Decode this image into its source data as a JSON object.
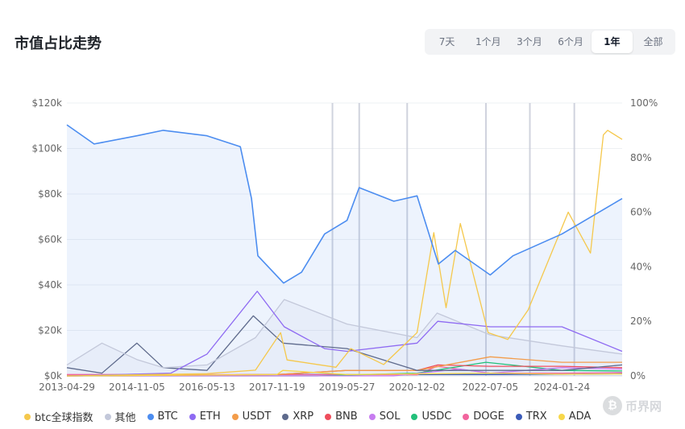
{
  "title": "市值占比走势",
  "range_buttons": [
    "7天",
    "1个月",
    "3个月",
    "6个月",
    "1年",
    "全部"
  ],
  "active_range": "1年",
  "watermark": "币界网",
  "chart_data": {
    "type": "line",
    "x_ticks": [
      "2013-04-29",
      "2014-11-05",
      "2016-05-13",
      "2017-11-19",
      "2019-05-27",
      "2020-12-02",
      "2022-07-05",
      "2024-01-24"
    ],
    "x_range": [
      "2013-04-29",
      "2025-05-15"
    ],
    "y_left": {
      "ticks": [
        "$0k",
        "$20k",
        "$40k",
        "$60k",
        "$80k",
        "$100k",
        "$120k"
      ],
      "range": [
        0,
        120000
      ]
    },
    "y_right": {
      "ticks": [
        "0%",
        "20%",
        "40%",
        "60%",
        "80%",
        "100%"
      ],
      "range": [
        0,
        100
      ]
    },
    "grid": true,
    "legend_position": "bottom",
    "vertical_markers": [
      "2019-02-01",
      "2019-09-01",
      "2020-09-15",
      "2022-06-01",
      "2023-05-15",
      "2024-05-01"
    ],
    "series": [
      {
        "name": "btc全球指数",
        "axis": "left",
        "color": "#f5c84c",
        "x": [
          "2013-04-29",
          "2016-05-13",
          "2017-06-01",
          "2017-12-17",
          "2018-02-06",
          "2019-03-01",
          "2019-06-26",
          "2020-03-13",
          "2020-12-02",
          "2021-04-14",
          "2021-07-20",
          "2021-11-10",
          "2022-06-18",
          "2022-11-21",
          "2023-05-01",
          "2024-03-14",
          "2024-09-06",
          "2024-12-17",
          "2025-01-20",
          "2025-05-15"
        ],
        "values": [
          0,
          1000,
          2500,
          19000,
          7000,
          3800,
          12000,
          5000,
          19000,
          63000,
          30000,
          67000,
          19000,
          16000,
          29000,
          72000,
          54000,
          106000,
          108000,
          104000
        ]
      },
      {
        "name": "其他",
        "axis": "right",
        "color": "#c3c8da",
        "x": [
          "2013-04-29",
          "2014-02-01",
          "2014-11-05",
          "2015-06-01",
          "2016-05-13",
          "2017-06-01",
          "2018-01-15",
          "2019-05-27",
          "2020-12-02",
          "2021-05-10",
          "2022-07-05",
          "2024-01-24",
          "2025-05-15"
        ],
        "values": [
          4,
          12,
          6,
          3,
          4,
          14,
          28,
          19,
          14,
          23,
          15,
          11,
          8
        ]
      },
      {
        "name": "BTC",
        "axis": "right",
        "color": "#4c8df0",
        "x": [
          "2013-04-29",
          "2013-12-01",
          "2014-11-05",
          "2015-06-01",
          "2016-05-13",
          "2017-02-01",
          "2017-05-01",
          "2017-06-20",
          "2018-01-10",
          "2018-06-01",
          "2018-12-01",
          "2019-05-27",
          "2019-09-01",
          "2020-06-01",
          "2020-12-02",
          "2021-05-20",
          "2021-10-01",
          "2022-07-05",
          "2023-01-01",
          "2024-01-24",
          "2025-05-15"
        ],
        "values": [
          92,
          85,
          88,
          90,
          88,
          84,
          65,
          44,
          34,
          38,
          52,
          57,
          69,
          64,
          66,
          41,
          46,
          37,
          44,
          52,
          65
        ]
      },
      {
        "name": "ETH",
        "axis": "right",
        "color": "#8e6af2",
        "x": [
          "2013-04-29",
          "2015-08-01",
          "2016-05-13",
          "2017-06-15",
          "2018-01-15",
          "2018-12-01",
          "2019-05-27",
          "2020-12-02",
          "2021-05-15",
          "2022-07-05",
          "2024-01-24",
          "2025-05-15"
        ],
        "values": [
          0,
          1,
          8,
          31,
          18,
          10,
          9,
          12,
          20,
          18,
          18,
          9
        ]
      },
      {
        "name": "USDT",
        "axis": "right",
        "color": "#f39c4a",
        "x": [
          "2013-04-29",
          "2017-11-19",
          "2019-05-27",
          "2020-12-02",
          "2022-07-05",
          "2024-01-24",
          "2025-05-15"
        ],
        "values": [
          0,
          0.5,
          2,
          2,
          7,
          5,
          5
        ]
      },
      {
        "name": "XRP",
        "axis": "right",
        "color": "#5e6a8c",
        "x": [
          "2013-04-29",
          "2014-02-01",
          "2014-11-05",
          "2015-06-01",
          "2016-05-13",
          "2017-05-15",
          "2018-01-04",
          "2019-05-27",
          "2020-12-02",
          "2022-07-05",
          "2024-01-24",
          "2025-05-15"
        ],
        "values": [
          3,
          1,
          12,
          3,
          2,
          22,
          12,
          10,
          2,
          2,
          2,
          4
        ]
      },
      {
        "name": "BNB",
        "axis": "right",
        "color": "#ef4d5c",
        "x": [
          "2013-04-29",
          "2017-11-19",
          "2019-05-27",
          "2020-12-02",
          "2021-05-15",
          "2022-07-05",
          "2024-01-24",
          "2025-05-15"
        ],
        "values": [
          0,
          0.5,
          2,
          2,
          4,
          3.5,
          3.5,
          3
        ]
      },
      {
        "name": "SOL",
        "axis": "right",
        "color": "#c77cf0",
        "x": [
          "2013-04-29",
          "2020-06-01",
          "2021-11-01",
          "2022-07-05",
          "2024-01-24",
          "2025-05-15"
        ],
        "values": [
          0,
          0,
          2.5,
          1,
          3,
          2.5
        ]
      },
      {
        "name": "USDC",
        "axis": "right",
        "color": "#22c07a",
        "x": [
          "2013-04-29",
          "2018-10-01",
          "2020-12-02",
          "2022-06-01",
          "2024-01-24",
          "2025-05-15"
        ],
        "values": [
          0,
          0,
          1,
          5,
          2,
          1.8
        ]
      },
      {
        "name": "DOGE",
        "axis": "right",
        "color": "#f2649d",
        "x": [
          "2013-04-29",
          "2020-12-02",
          "2021-05-08",
          "2022-07-05",
          "2024-01-24",
          "2025-05-15"
        ],
        "values": [
          0.5,
          0.4,
          3.5,
          1,
          1,
          1.2
        ]
      },
      {
        "name": "TRX",
        "axis": "right",
        "color": "#3b5bb8",
        "x": [
          "2013-04-29",
          "2017-11-19",
          "2019-05-27",
          "2022-07-05",
          "2024-01-24",
          "2025-05-15"
        ],
        "values": [
          0,
          0.5,
          0.5,
          0.5,
          0.6,
          0.8
        ]
      },
      {
        "name": "ADA",
        "axis": "right",
        "color": "#f7d74a",
        "x": [
          "2013-04-29",
          "2017-11-19",
          "2018-01-04",
          "2019-05-27",
          "2022-07-05",
          "2024-01-24",
          "2025-05-15"
        ],
        "values": [
          0,
          0.5,
          2,
          0.5,
          1,
          0.6,
          0.7
        ]
      }
    ]
  }
}
